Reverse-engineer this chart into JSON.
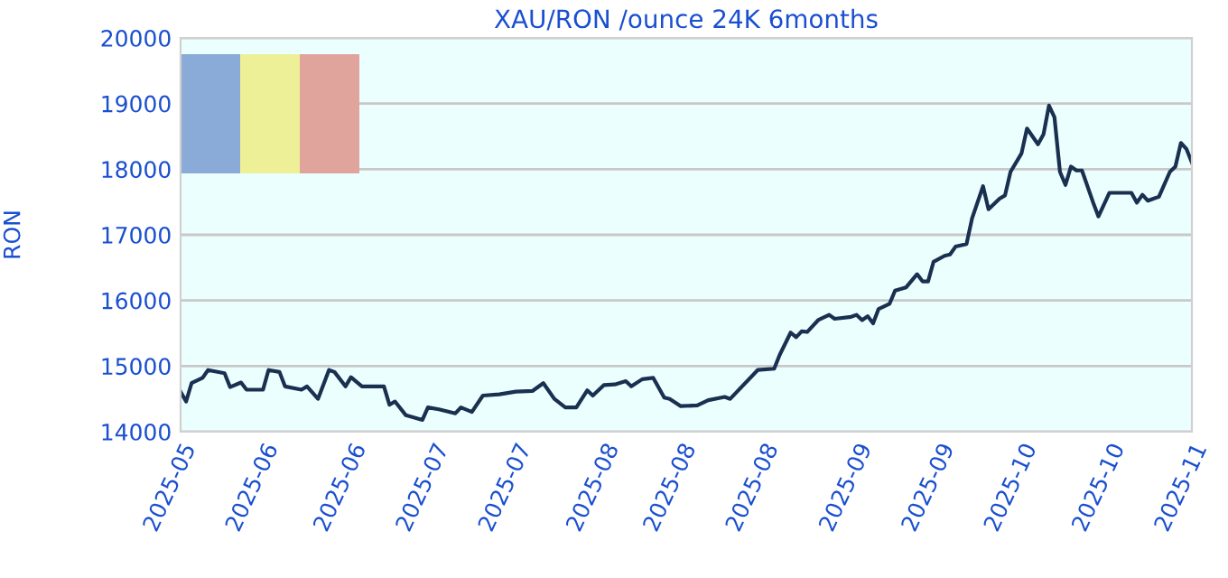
{
  "chart_data": {
    "type": "line",
    "title": "XAU/RON /ounce 24K 6months",
    "ylabel": "RON",
    "x": [
      "2025-05-03",
      "2025-05-04",
      "2025-05-05",
      "2025-05-07",
      "2025-05-08",
      "2025-05-11",
      "2025-05-12",
      "2025-05-14",
      "2025-05-15",
      "2025-05-18",
      "2025-05-19",
      "2025-05-21",
      "2025-05-22",
      "2025-05-25",
      "2025-05-26",
      "2025-05-28",
      "2025-05-30",
      "2025-05-31",
      "2025-06-02",
      "2025-06-03",
      "2025-06-05",
      "2025-06-09",
      "2025-06-10",
      "2025-06-11",
      "2025-06-13",
      "2025-06-16",
      "2025-06-17",
      "2025-06-19",
      "2025-06-22",
      "2025-06-23",
      "2025-06-25",
      "2025-06-27",
      "2025-06-30",
      "2025-07-03",
      "2025-07-06",
      "2025-07-08",
      "2025-07-10",
      "2025-07-12",
      "2025-07-14",
      "2025-07-16",
      "2025-07-17",
      "2025-07-19",
      "2025-07-21",
      "2025-07-23",
      "2025-07-24",
      "2025-07-26",
      "2025-07-28",
      "2025-07-30",
      "2025-07-31",
      "2025-08-02",
      "2025-08-05",
      "2025-08-07",
      "2025-08-10",
      "2025-08-11",
      "2025-08-16",
      "2025-08-19",
      "2025-08-20",
      "2025-08-22",
      "2025-08-23",
      "2025-08-24",
      "2025-08-25",
      "2025-08-27",
      "2025-08-29",
      "2025-08-30",
      "2025-09-02",
      "2025-09-03",
      "2025-09-04",
      "2025-09-05",
      "2025-09-06",
      "2025-09-07",
      "2025-09-09",
      "2025-09-10",
      "2025-09-12",
      "2025-09-14",
      "2025-09-15",
      "2025-09-16",
      "2025-09-17",
      "2025-09-19",
      "2025-09-20",
      "2025-09-21",
      "2025-09-23",
      "2025-09-24",
      "2025-09-26",
      "2025-09-27",
      "2025-09-29",
      "2025-09-30",
      "2025-10-01",
      "2025-10-03",
      "2025-10-04",
      "2025-10-06",
      "2025-10-07",
      "2025-10-08",
      "2025-10-09",
      "2025-10-10",
      "2025-10-11",
      "2025-10-12",
      "2025-10-13",
      "2025-10-14",
      "2025-10-16",
      "2025-10-17",
      "2025-10-19",
      "2025-10-23",
      "2025-10-24",
      "2025-10-25",
      "2025-10-26",
      "2025-10-27",
      "2025-10-28",
      "2025-10-30",
      "2025-10-31",
      "2025-11-01",
      "2025-11-02",
      "2025-11-03"
    ],
    "series": [
      {
        "color": "#1a3050",
        "values": [
          14610,
          14460,
          14740,
          14820,
          14940,
          14890,
          14680,
          14750,
          14640,
          14640,
          14940,
          14910,
          14690,
          14640,
          14690,
          14500,
          14940,
          14910,
          14690,
          14830,
          14690,
          14690,
          14410,
          14460,
          14250,
          14180,
          14370,
          14340,
          14280,
          14370,
          14300,
          14550,
          14570,
          14610,
          14620,
          14740,
          14500,
          14370,
          14370,
          14630,
          14550,
          14710,
          14720,
          14770,
          14690,
          14800,
          14820,
          14520,
          14500,
          14390,
          14400,
          14480,
          14530,
          14500,
          14940,
          14960,
          15170,
          15510,
          15440,
          15530,
          15520,
          15700,
          15780,
          15720,
          15750,
          15780,
          15700,
          15760,
          15650,
          15870,
          15950,
          16150,
          16200,
          16400,
          16290,
          16290,
          16590,
          16680,
          16700,
          16820,
          16860,
          17250,
          17740,
          17390,
          17550,
          17600,
          17960,
          18240,
          18620,
          18380,
          18530,
          18970,
          18790,
          17960,
          17760,
          18040,
          17980,
          17980,
          17500,
          17280,
          17640,
          17640,
          17490,
          17610,
          17520,
          17550,
          17580,
          17960,
          18040,
          18400,
          18310,
          18100
        ]
      }
    ],
    "xlim": [
      "2025-05-03",
      "2025-11-03"
    ],
    "xticks": [
      {
        "value": "2025-05-03",
        "label": "2025-05"
      },
      {
        "value": "2025-05-18",
        "label": "2025-06"
      },
      {
        "value": "2025-06-03",
        "label": "2025-06"
      },
      {
        "value": "2025-06-18",
        "label": "2025-07"
      },
      {
        "value": "2025-07-03",
        "label": "2025-07"
      },
      {
        "value": "2025-07-19",
        "label": "2025-08"
      },
      {
        "value": "2025-08-02",
        "label": "2025-08"
      },
      {
        "value": "2025-08-17",
        "label": "2025-08"
      },
      {
        "value": "2025-09-03",
        "label": "2025-09"
      },
      {
        "value": "2025-09-18",
        "label": "2025-09"
      },
      {
        "value": "2025-10-03",
        "label": "2025-10"
      },
      {
        "value": "2025-10-19",
        "label": "2025-10"
      },
      {
        "value": "2025-11-03",
        "label": "2025-11"
      }
    ],
    "ylim": [
      14000,
      20000
    ],
    "yticks": [
      14000,
      15000,
      16000,
      17000,
      18000,
      19000,
      20000
    ],
    "grid": "y",
    "marker": "none",
    "line_style": "solid",
    "legend": false
  }
}
